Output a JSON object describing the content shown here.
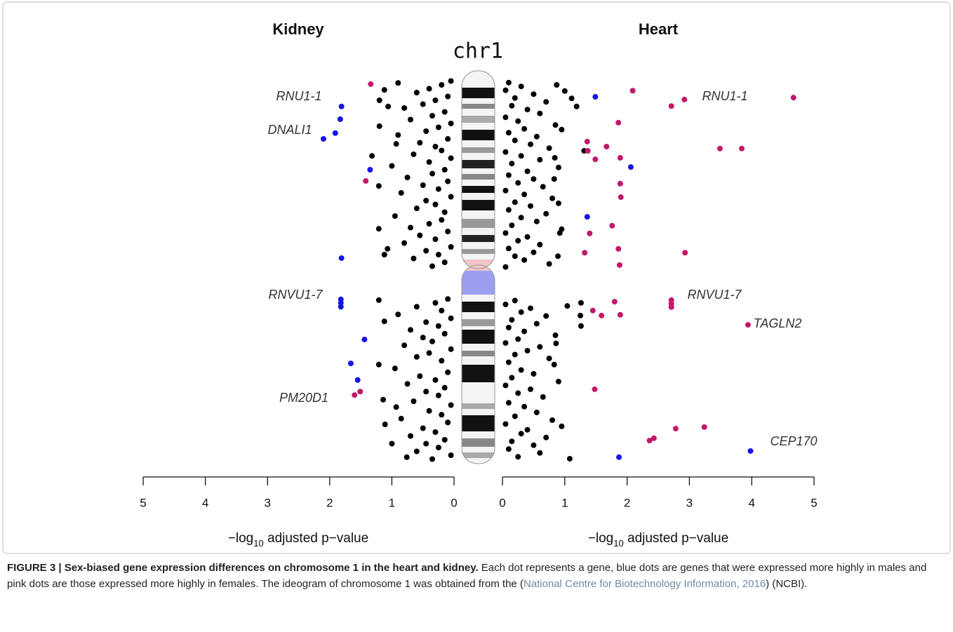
{
  "chart_data": [
    {
      "type": "scatter",
      "title": "Kidney",
      "xlabel": [
        "−log",
        "10",
        " adjusted p−value"
      ],
      "xlim": [
        5,
        0
      ],
      "xticks": [
        5,
        4,
        3,
        2,
        1,
        0
      ],
      "ylim": [
        100,
        0
      ],
      "series": [
        {
          "color": "#000000",
          "x": [
            0.9,
            1.12,
            1.2,
            1.06,
            1.2,
            1.32,
            0.93,
            1.21,
            1.21,
            1.07,
            1.12,
            1.21,
            1.12,
            1.21,
            1.14,
            0.93,
            1.11,
            1.0,
            0.76,
            0.05,
            0.2,
            0.4,
            0.6,
            0.1,
            0.3,
            0.5,
            0.8,
            0.15,
            0.35,
            0.7,
            0.05,
            0.25,
            0.45,
            0.9,
            0.1,
            0.55,
            0.3,
            0.2,
            0.65,
            0.05,
            0.4,
            1.0,
            0.15,
            0.35,
            0.75,
            0.1,
            0.5,
            0.25,
            0.85,
            0.05,
            0.45,
            0.3,
            0.6,
            0.15,
            0.95,
            0.2,
            0.4,
            0.7,
            0.1,
            0.55,
            0.3,
            0.8,
            0.05,
            0.45,
            0.25,
            0.65,
            0.15,
            0.35,
            0.1,
            0.3,
            0.6,
            0.2,
            0.9,
            0.05,
            0.45,
            0.25,
            0.7,
            0.15,
            0.5,
            0.35,
            0.8,
            0.05,
            0.4,
            0.6,
            0.2,
            0.95,
            0.1,
            0.55,
            0.3,
            0.75,
            0.15,
            0.45,
            0.25,
            0.65,
            0.05,
            0.4,
            0.2,
            0.85,
            0.1,
            0.5,
            0.3,
            0.7,
            0.15,
            0.45,
            0.25,
            0.6,
            0.05,
            0.35
          ],
          "y": [
            1.5,
            3.3,
            6,
            7.6,
            12.7,
            20.4,
            17.3,
            28.2,
            39.3,
            44.5,
            46,
            57.8,
            63.3,
            74.5,
            83.6,
            85.5,
            90,
            95,
            98.5,
            1,
            2,
            3,
            4,
            5,
            6,
            7,
            8,
            9,
            10,
            11,
            12,
            13,
            14,
            15,
            16,
            17,
            18,
            19,
            20,
            21,
            22,
            23,
            24,
            25,
            26,
            27,
            28,
            29,
            30,
            31,
            32,
            33,
            34,
            35,
            36,
            37,
            38,
            39,
            40,
            41,
            42,
            43,
            44,
            45,
            46,
            47,
            48,
            49,
            57.5,
            58.5,
            59.5,
            60.5,
            61.5,
            62.5,
            63.5,
            64.5,
            65.5,
            66.5,
            67.5,
            68.5,
            69.5,
            70.5,
            71.5,
            72.5,
            73.5,
            75.5,
            76.5,
            77.5,
            78.5,
            79.5,
            80.5,
            81.5,
            82.5,
            84,
            85,
            86.5,
            87.5,
            88.5,
            89.5,
            91,
            92,
            93,
            94,
            95,
            96,
            97,
            98,
            99
          ]
        },
        {
          "color": "#1414e6",
          "x": [
            1.81,
            1.83,
            1.91,
            2.1,
            1.35,
            1.81,
            1.82,
            1.82,
            1.82,
            1.44,
            1.66,
            1.55
          ],
          "y": [
            7.6,
            10.9,
            14.5,
            16,
            24,
            46.9,
            57.6,
            58.5,
            59.5,
            68,
            74.2,
            78.5
          ]
        },
        {
          "color": "#c2186b",
          "x": [
            1.34,
            1.42,
            1.51,
            1.6
          ],
          "y": [
            1.8,
            26.9,
            81.5,
            82.4
          ]
        }
      ],
      "annotations": [
        "RNU1-1",
        "DNALI1",
        "RNVU1-7",
        "PM20D1"
      ]
    },
    {
      "type": "scatter",
      "title": "Heart",
      "xlabel": [
        "−log",
        "10",
        " adjusted p−value"
      ],
      "xlim": [
        0,
        5
      ],
      "xticks": [
        0,
        1,
        2,
        3,
        4,
        5
      ],
      "ylim": [
        100,
        0
      ],
      "series": [
        {
          "color": "#000000",
          "x": [
            0.87,
            1.0,
            1.11,
            1.19,
            0.95,
            0.84,
            1.31,
            0.83,
            0.9,
            0.92,
            0.89,
            1.04,
            1.26,
            1.25,
            1.26,
            0.86,
            0.83,
            0.95,
            1.08,
            0.1,
            0.3,
            0.05,
            0.5,
            0.2,
            0.7,
            0.15,
            0.4,
            0.6,
            0.05,
            0.25,
            0.85,
            0.35,
            0.1,
            0.55,
            0.2,
            0.45,
            0.75,
            0.05,
            0.3,
            0.6,
            0.15,
            0.9,
            0.4,
            0.1,
            0.5,
            0.25,
            0.65,
            0.05,
            0.35,
            0.8,
            0.2,
            0.45,
            0.1,
            0.7,
            0.3,
            0.55,
            0.15,
            0.95,
            0.05,
            0.4,
            0.25,
            0.6,
            0.1,
            0.5,
            0.2,
            0.35,
            0.75,
            0.05,
            0.2,
            0.05,
            0.45,
            0.3,
            0.7,
            0.15,
            0.55,
            0.1,
            0.35,
            0.85,
            0.25,
            0.05,
            0.6,
            0.4,
            0.2,
            0.75,
            0.1,
            0.3,
            0.5,
            0.15,
            0.9,
            0.05,
            0.45,
            0.25,
            0.65,
            0.1,
            0.35,
            0.55,
            0.2,
            0.8,
            0.05,
            0.4,
            0.3,
            0.7,
            0.15,
            0.5,
            0.1,
            0.6,
            0.25
          ],
          "y": [
            2,
            3.6,
            5.5,
            7.6,
            13.6,
            20.9,
            19.1,
            26.4,
            32.7,
            40.4,
            46.4,
            59.3,
            58.5,
            61.8,
            64.5,
            69,
            74.5,
            90.5,
            98.9,
            1.4,
            2.4,
            3.4,
            4.4,
            5.4,
            6.4,
            7.4,
            8.4,
            9.4,
            10.4,
            11.4,
            12.4,
            13.4,
            14.4,
            15.4,
            16.4,
            17.4,
            18.4,
            19.4,
            20.4,
            21.4,
            22.4,
            23.4,
            24.4,
            25.4,
            26.4,
            27.4,
            28.4,
            29.4,
            30.4,
            31.4,
            32.4,
            33.4,
            34.4,
            35.4,
            36.4,
            37.4,
            38.4,
            39.4,
            40.4,
            41.4,
            42.4,
            43.4,
            44.4,
            45.4,
            46.4,
            47.4,
            48.4,
            49.2,
            57.9,
            58.9,
            59.9,
            60.9,
            61.9,
            62.9,
            63.9,
            64.9,
            65.9,
            66.9,
            67.9,
            68.9,
            69.9,
            70.9,
            71.9,
            72.9,
            73.9,
            75.9,
            76.9,
            77.9,
            78.9,
            79.9,
            80.9,
            81.9,
            82.9,
            84.4,
            85.4,
            86.9,
            87.9,
            88.9,
            89.9,
            91.4,
            92.4,
            93.4,
            94.4,
            95.4,
            96.4,
            97.4,
            98.4
          ]
        },
        {
          "color": "#1414e6",
          "x": [
            1.49,
            2.06,
            1.36,
            3.98,
            1.87
          ],
          "y": [
            5.1,
            23.3,
            36.2,
            96.9,
            98.5
          ]
        },
        {
          "color": "#c2186b",
          "x": [
            2.09,
            2.92,
            2.71,
            4.67,
            1.86,
            1.36,
            1.37,
            1.67,
            3.49,
            3.84,
            1.49,
            1.89,
            1.89,
            1.9,
            1.76,
            1.4,
            1.32,
            1.86,
            2.93,
            1.88,
            1.8,
            2.71,
            2.71,
            2.71,
            1.45,
            1.59,
            1.89,
            3.94,
            1.48,
            2.78,
            3.24,
            2.43,
            2.36
          ],
          "y": [
            3.5,
            5.8,
            7.5,
            5.3,
            11.8,
            16.7,
            19.1,
            18,
            18.5,
            18.5,
            21.3,
            20.9,
            27.6,
            31.1,
            38.5,
            40.5,
            45.5,
            44.5,
            45.5,
            48.7,
            58.2,
            57.8,
            58.7,
            59.6,
            60.5,
            61.8,
            61.6,
            64.2,
            80.9,
            91.1,
            90.7,
            93.6,
            94.2
          ]
        }
      ],
      "annotations": [
        "RNU1-1",
        "RNVU1-7",
        "TAGLN2",
        "CEP170"
      ]
    }
  ],
  "ideogram_label": "chr1",
  "caption": {
    "label": "FIGURE 3 | Sex-biased gene expression differences on chromosome 1 in the heart and kidney.",
    "text_before": " Each dot represents a gene, blue dots are genes that were expressed more highly in males and pink dots are those expressed more highly in females. The ideogram of chromosome 1 was obtained from the (",
    "link": "National Centre for Biotechnology Information, 2016",
    "text_after": ") (NCBI)."
  }
}
